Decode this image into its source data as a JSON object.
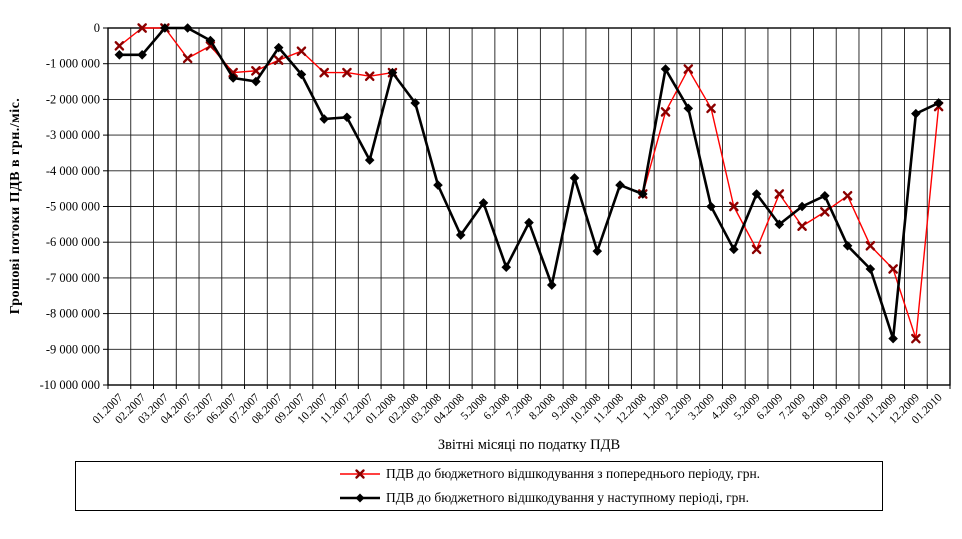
{
  "chart_data": {
    "type": "line",
    "title": "",
    "xlabel": "Звітні місяці по податку ПДВ",
    "ylabel": "Грошові потоки ПДВ в грн./міс.",
    "ylim": [
      -10000000,
      0
    ],
    "y_tick_step": 1000000,
    "y_tick_labels": [
      "0",
      "-1 000 000",
      "-2 000 000",
      "-3 000 000",
      "-4 000 000",
      "-5 000 000",
      "-6 000 000",
      "-7 000 000",
      "-8 000 000",
      "-9 000 000",
      "-10 000 000"
    ],
    "grid": true,
    "legend_position": "bottom-box",
    "categories": [
      "01.2007",
      "02.2007",
      "03.2007",
      "04.2007",
      "05.2007",
      "06.2007",
      "07.2007",
      "08.2007",
      "09.2007",
      "10.2007",
      "11.2007",
      "12.2007",
      "01.2008",
      "02.2008",
      "03.2008",
      "04.2008",
      "5.2008",
      "6.2008",
      "7.2008",
      "8.2008",
      "9.2008",
      "10.2008",
      "11.2008",
      "12.2008",
      "1.2009",
      "2.2009",
      "3.2009",
      "4.2009",
      "5.2009",
      "6.2009",
      "7.2009",
      "8.2009",
      "9.2009",
      "10.2009",
      "11.2009",
      "12.2009",
      "01.2010"
    ],
    "series": [
      {
        "name": "ПДВ до бюджетного відшкодування з попереднього періоду, грн.",
        "color": "#ff0000",
        "marker": "x",
        "marker_color": "#8b0000",
        "line_width": 1.4,
        "values": [
          -500000,
          0,
          0,
          -850000,
          -500000,
          -1250000,
          -1200000,
          -900000,
          -650000,
          -1250000,
          -1250000,
          -1350000,
          -1250000,
          null,
          null,
          null,
          null,
          null,
          null,
          null,
          null,
          null,
          null,
          -4650000,
          -2350000,
          -1150000,
          -2250000,
          -5000000,
          -6200000,
          -4650000,
          -5550000,
          -5150000,
          -4700000,
          -6100000,
          -6750000,
          -8700000,
          -2200000
        ]
      },
      {
        "name": "ПДВ до бюджетного відшкодування у наступному періоді, грн.",
        "color": "#000000",
        "marker": "diamond",
        "marker_color": "#000000",
        "line_width": 2.6,
        "values": [
          -750000,
          -750000,
          0,
          0,
          -350000,
          -1400000,
          -1500000,
          -550000,
          -1300000,
          -2550000,
          -2500000,
          -3700000,
          -1250000,
          -2100000,
          -4400000,
          -5800000,
          -4900000,
          -6700000,
          -5450000,
          -7200000,
          -4200000,
          -6250000,
          -4400000,
          -4650000,
          -1150000,
          -2250000,
          -5000000,
          -6200000,
          -4650000,
          -5500000,
          -5000000,
          -4700000,
          -6100000,
          -6750000,
          -8700000,
          -2400000,
          -2100000
        ]
      }
    ],
    "plot_style": {
      "gridline_color": "#1a1a1a",
      "border_color": "#000000",
      "background": "#ffffff"
    }
  }
}
